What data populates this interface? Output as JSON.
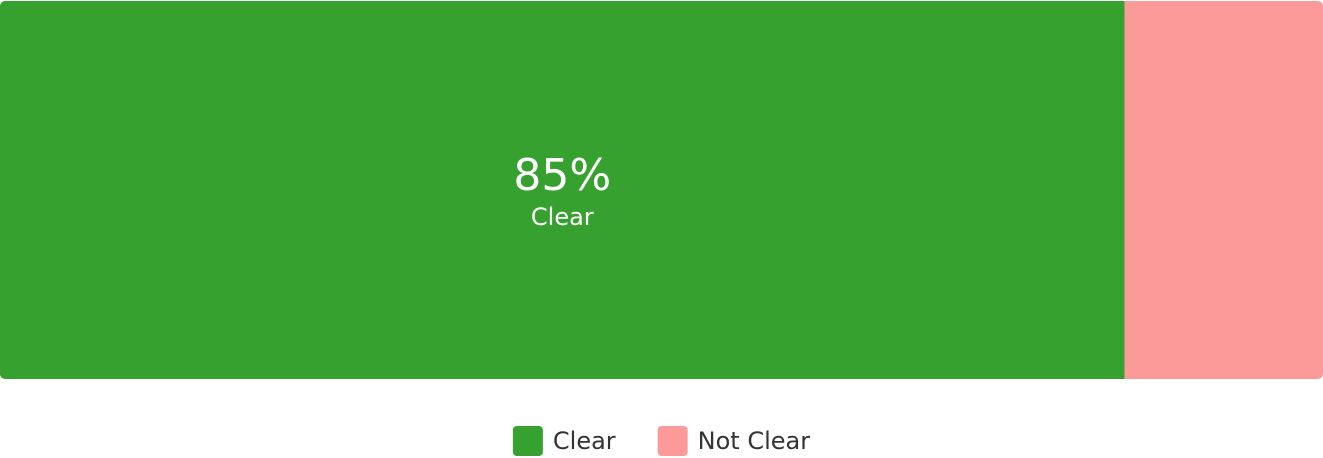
{
  "chart_data": {
    "type": "bar",
    "orientation": "horizontal",
    "stacked": true,
    "categories": [
      null
    ],
    "series": [
      {
        "name": "Clear",
        "color": "#36a12f",
        "values": [
          85
        ],
        "value_labels": [
          "85%"
        ]
      },
      {
        "name": "Not Clear",
        "color": "#fc9a9a",
        "values": [
          15
        ]
      }
    ],
    "legend": "bottom"
  }
}
